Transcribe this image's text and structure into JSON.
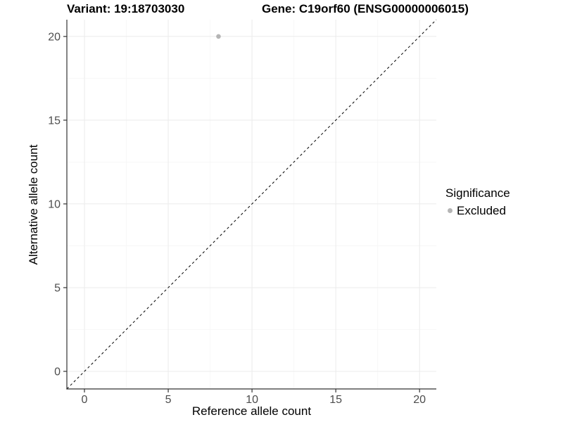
{
  "chart_data": {
    "type": "scatter",
    "title_left": "Variant: 19:18703030",
    "title_right": "Gene: C19orf60 (ENSG00000006015)",
    "xlabel": "Reference allele count",
    "ylabel": "Alternative allele count",
    "xlim": [
      -1.05,
      21
    ],
    "ylim": [
      -1.05,
      21
    ],
    "x_ticks": [
      0,
      5,
      10,
      15,
      20
    ],
    "x_tick_labels": [
      "0",
      "5",
      "10",
      "15",
      "20"
    ],
    "y_ticks": [
      0,
      5,
      10,
      15,
      20
    ],
    "y_tick_labels": [
      "0",
      "5",
      "10",
      "15",
      "20"
    ],
    "x_minor_ticks": [
      2.5,
      7.5,
      12.5,
      17.5
    ],
    "y_minor_ticks": [
      2.5,
      7.5,
      12.5,
      17.5
    ],
    "grid": true,
    "reference_line": {
      "type": "identity",
      "style": "dashed",
      "from": [
        -1.05,
        -1.05
      ],
      "to": [
        21,
        21
      ],
      "color": "#000000"
    },
    "series": [
      {
        "name": "Excluded",
        "color": "#b5b5b5",
        "marker": "circle",
        "points": [
          {
            "x": 8,
            "y": 20
          }
        ]
      }
    ],
    "legend": {
      "title": "Significance",
      "position": "right",
      "entries": [
        {
          "label": "Excluded",
          "color": "#b5b5b5",
          "marker": "circle"
        }
      ]
    },
    "style": {
      "background": "#ffffff",
      "grid_major": "#ebebeb",
      "grid_minor": "#f6f6f6",
      "axis_line": "#333333",
      "tick_color": "#333333",
      "tick_text_color": "#4d4d4d",
      "title_color": "#000000"
    }
  }
}
